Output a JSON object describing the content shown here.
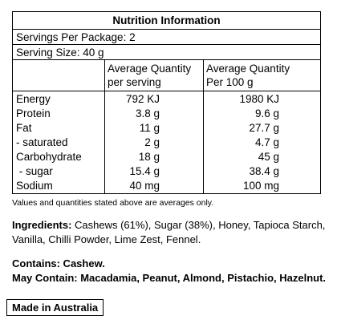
{
  "panel": {
    "title": "Nutrition Information",
    "servings_per_package": "Servings Per Package: 2",
    "serving_size": "Serving Size: 40 g",
    "col1_header_line1": "Average Quantity",
    "col1_header_line2": "per serving",
    "col2_header_line1": "Average Quantity",
    "col2_header_line2": "Per 100 g",
    "rows": [
      {
        "name": "Energy",
        "per_serving": "792 KJ",
        "per_100g": "1980 KJ"
      },
      {
        "name": "Protein",
        "per_serving": "3.8 g",
        "per_100g": "9.6 g"
      },
      {
        "name": "Fat",
        "per_serving": "11 g",
        "per_100g": "27.7 g"
      },
      {
        "name": "- saturated",
        "per_serving": "2 g",
        "per_100g": "4.7 g"
      },
      {
        "name": "Carbohydrate",
        "per_serving": "18 g",
        "per_100g": "45 g"
      },
      {
        "name": " - sugar",
        "per_serving": "15.4 g",
        "per_100g": "38.4 g"
      },
      {
        "name": "Sodium",
        "per_serving": "40 mg",
        "per_100g": "100 mg"
      }
    ]
  },
  "note": "Values and quantities stated above are averages only.",
  "ingredients": {
    "label": "Ingredients:",
    "text": " Cashews (61%), Sugar (38%), Honey, Tapioca Starch, Vanilla, Chilli Powder, Lime Zest, Fennel."
  },
  "contains": {
    "label": "Contains: Cashew.",
    "may_label": "May Contain: Macadamia, Peanut, Almond, Pistachio, Hazelnut."
  },
  "origin": "Made in Australia"
}
